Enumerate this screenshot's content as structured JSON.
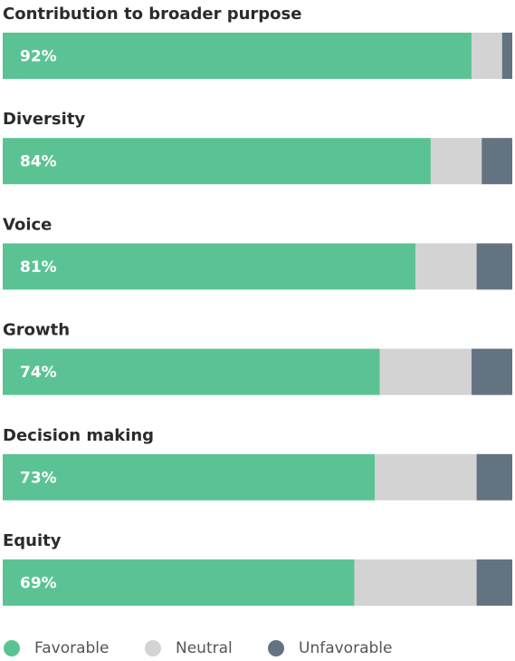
{
  "chart_data": {
    "type": "stacked-bar",
    "categories": [
      "Contribution to broader purpose",
      "Diversity",
      "Voice",
      "Growth",
      "Decision making",
      "Equity"
    ],
    "series": [
      {
        "name": "Favorable",
        "color": "#5bc393",
        "values": [
          92,
          84,
          81,
          74,
          73,
          69
        ],
        "value_labels": [
          "92%",
          "84%",
          "81%",
          "74%",
          "73%",
          "69%"
        ]
      },
      {
        "name": "Neutral",
        "color": "#d3d3d3",
        "values": [
          6,
          10,
          12,
          18,
          20,
          24
        ]
      },
      {
        "name": "Unfavorable",
        "color": "#647382",
        "values": [
          2,
          6,
          7,
          8,
          7,
          7
        ]
      }
    ],
    "xlim": [
      0,
      100
    ]
  }
}
